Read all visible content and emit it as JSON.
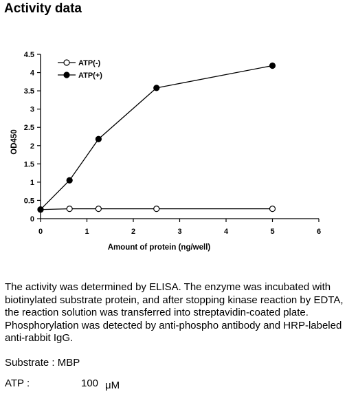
{
  "page": {
    "title": "Activity data"
  },
  "chart_data": {
    "type": "line",
    "x": [
      0,
      0.625,
      1.25,
      2.5,
      5
    ],
    "series": [
      {
        "name": "ATP(-)",
        "values": [
          0.25,
          0.27,
          0.27,
          0.27,
          0.27
        ],
        "marker": "open-circle",
        "color": "#000000"
      },
      {
        "name": "ATP(+)",
        "values": [
          0.25,
          1.05,
          2.18,
          3.58,
          4.19
        ],
        "marker": "filled-circle",
        "color": "#000000"
      }
    ],
    "title": "",
    "xlabel": "Amount of protein (ng/well)",
    "ylabel": "OD450",
    "xlim": [
      0,
      6
    ],
    "ylim": [
      0,
      4.5
    ],
    "xticks": [
      0,
      1,
      2,
      3,
      4,
      5,
      6
    ],
    "yticks": [
      0,
      0.5,
      1,
      1.5,
      2,
      2.5,
      3,
      3.5,
      4,
      4.5
    ],
    "xtick_labels": [
      "0",
      "1",
      "2",
      "3",
      "4",
      "5",
      "6"
    ],
    "ytick_labels": [
      "0",
      "0.5",
      "1",
      "1.5",
      "2",
      "2.5",
      "3",
      "3.5",
      "4",
      "4.5"
    ],
    "grid": false,
    "legend": "top-left"
  },
  "description": "The activity was determined by ELISA. The enzyme was incubated with biotinylated substrate protein, and after stopping kinase reaction by EDTA, the reaction solution was transferred into streptavidin-coated plate. Phosphorylation was detected by anti-phospho antibody and HRP-labeled anti-rabbit IgG.",
  "substrate": {
    "label": "Substrate : MBP"
  },
  "atp": {
    "label": "ATP :",
    "value": "100",
    "unit": "μM"
  }
}
